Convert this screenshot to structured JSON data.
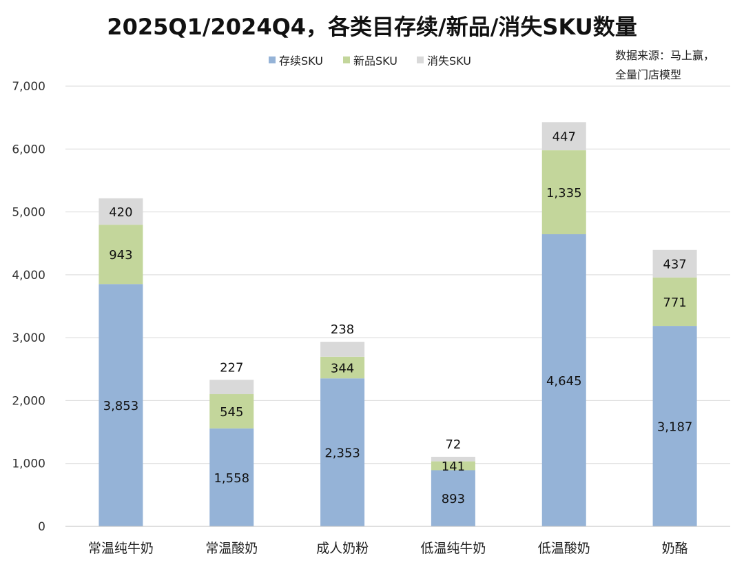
{
  "chart_data": {
    "type": "bar",
    "stacked": true,
    "title": "2025Q1/2024Q4，各类目存续/新品/消失SKU数量",
    "source_note": [
      "数据来源：马上赢，",
      "全量门店模型"
    ],
    "categories": [
      "常温纯牛奶",
      "常温酸奶",
      "成人奶粉",
      "低温纯牛奶",
      "低温酸奶",
      "奶酪"
    ],
    "series": [
      {
        "name": "存续SKU",
        "color": "#95b3d7",
        "values": [
          3853,
          1558,
          2353,
          893,
          4645,
          3187
        ]
      },
      {
        "name": "新品SKU",
        "color": "#c3d69b",
        "values": [
          943,
          545,
          344,
          141,
          1335,
          771
        ]
      },
      {
        "name": "消失SKU",
        "color": "#d9d9d9",
        "values": [
          420,
          227,
          238,
          72,
          447,
          437
        ]
      }
    ],
    "ylim": [
      0,
      7000
    ],
    "yticks": [
      0,
      1000,
      2000,
      3000,
      4000,
      5000,
      6000,
      7000
    ],
    "ytick_labels": [
      "0",
      "1,000",
      "2,000",
      "3,000",
      "4,000",
      "5,000",
      "6,000",
      "7,000"
    ],
    "data_labels": [
      [
        "3,853",
        "1,558",
        "2,353",
        "893",
        "4,645",
        "3,187"
      ],
      [
        "943",
        "545",
        "344",
        "141",
        "1,335",
        "771"
      ],
      [
        "420",
        "227",
        "238",
        "72",
        "447",
        "437"
      ]
    ],
    "grid": true,
    "legend": "top-center"
  }
}
